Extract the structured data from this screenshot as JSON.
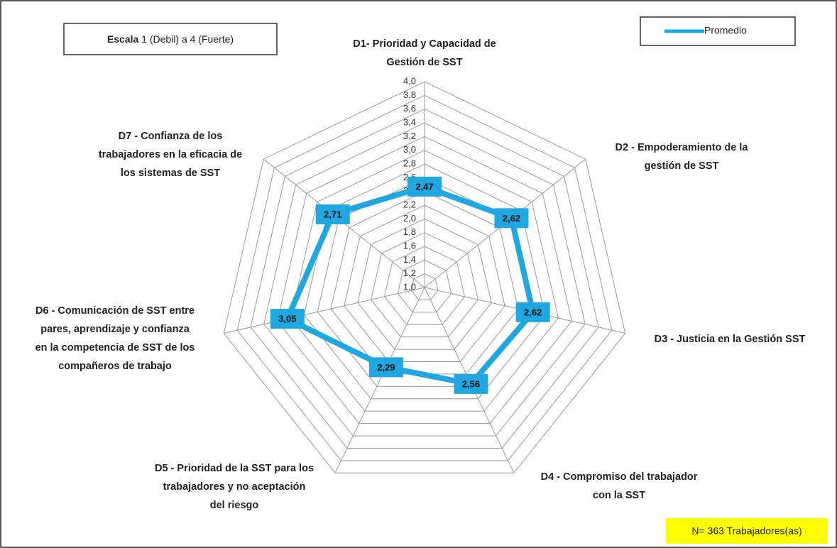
{
  "chart_data": {
    "type": "radar",
    "annotations": {
      "scale_bold": "Escala",
      "scale_rest": "1 (Debil) a 4 (Fuerte)",
      "footnote": "N= 363 Trabajadores(as)"
    },
    "categories": [
      "D1- Prioridad y Capacidad de\nGestión de SST",
      "D2 - Empoderamiento de la\ngestión de SST",
      "D3 - Justicia en la Gestión SST",
      "D4 - Compromiso del trabajador\ncon la SST",
      "D5 - Prioridad de la SST para los\ntrabajadores y no aceptación\ndel riesgo",
      "D6 - Comunicación de SST entre\npares, aprendizaje y confianza\nen la competencia de SST de los\ncompañeros de trabajo",
      "D7 - Confianza de los\ntrabajadores en la eficacia de\nlos sistemas de SST"
    ],
    "series": [
      {
        "name": "Promedio",
        "color": "#1ea7e1",
        "values": [
          2.47,
          2.62,
          2.62,
          2.56,
          2.29,
          3.05,
          2.71
        ],
        "value_labels": [
          "2,47",
          "2,62",
          "2,62",
          "2,56",
          "2,29",
          "3,05",
          "2,71"
        ]
      }
    ],
    "rlim": [
      1.0,
      4.0
    ],
    "rticks": [
      {
        "value": 1.0,
        "label": "1,0"
      },
      {
        "value": 1.2,
        "label": "1,2"
      },
      {
        "value": 1.4,
        "label": "1,4"
      },
      {
        "value": 1.6,
        "label": "1,6"
      },
      {
        "value": 1.8,
        "label": "1,8"
      },
      {
        "value": 2.0,
        "label": "2,0"
      },
      {
        "value": 2.2,
        "label": "2,2"
      },
      {
        "value": 2.4,
        "label": "2,4"
      },
      {
        "value": 2.6,
        "label": "2,6"
      },
      {
        "value": 2.8,
        "label": "2,8"
      },
      {
        "value": 3.0,
        "label": "3,0"
      },
      {
        "value": 3.2,
        "label": "3,2"
      },
      {
        "value": 3.4,
        "label": "3,4"
      },
      {
        "value": 3.6,
        "label": "3,6"
      },
      {
        "value": 3.8,
        "label": "3,8"
      },
      {
        "value": 4.0,
        "label": "4,0"
      }
    ],
    "grid": true,
    "legend": "upper right"
  }
}
